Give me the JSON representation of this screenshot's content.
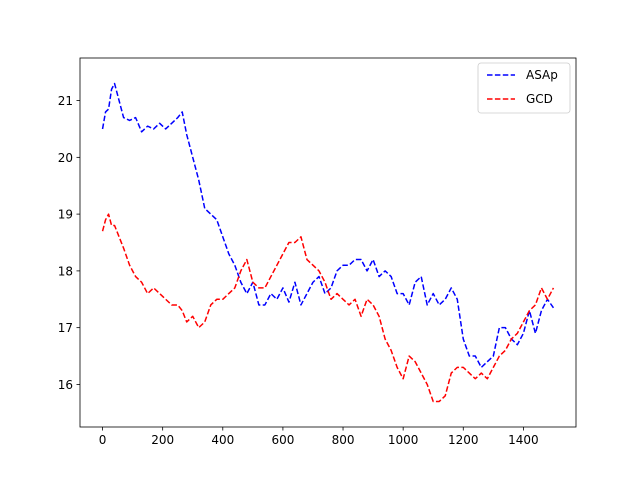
{
  "chart_data": {
    "type": "line",
    "title": "",
    "xlabel": "",
    "ylabel": "",
    "xlim": [
      -75,
      1575
    ],
    "ylim": [
      15.25,
      21.75
    ],
    "xticks": [
      0,
      200,
      400,
      600,
      800,
      1000,
      1200,
      1400
    ],
    "yticks": [
      16,
      17,
      18,
      19,
      20,
      21
    ],
    "grid": false,
    "legend_position": "top-right",
    "series": [
      {
        "name": "ASAp",
        "color": "#0000ff",
        "linestyle": "dashed",
        "x": [
          0,
          10,
          20,
          30,
          40,
          55,
          70,
          90,
          110,
          130,
          150,
          170,
          190,
          210,
          230,
          250,
          265,
          280,
          300,
          320,
          340,
          360,
          380,
          400,
          420,
          440,
          460,
          480,
          500,
          520,
          540,
          560,
          580,
          600,
          620,
          640,
          660,
          680,
          700,
          720,
          740,
          760,
          780,
          800,
          820,
          840,
          860,
          880,
          900,
          920,
          940,
          960,
          980,
          1000,
          1020,
          1040,
          1060,
          1080,
          1100,
          1120,
          1140,
          1160,
          1180,
          1200,
          1220,
          1240,
          1260,
          1280,
          1300,
          1320,
          1340,
          1360,
          1380,
          1400,
          1420,
          1440,
          1460,
          1480,
          1500
        ],
        "y": [
          20.5,
          20.8,
          20.85,
          21.2,
          21.3,
          21.0,
          20.7,
          20.65,
          20.7,
          20.45,
          20.55,
          20.5,
          20.6,
          20.5,
          20.6,
          20.7,
          20.8,
          20.4,
          20.0,
          19.6,
          19.1,
          19.0,
          18.9,
          18.6,
          18.3,
          18.1,
          17.8,
          17.6,
          17.8,
          17.4,
          17.4,
          17.6,
          17.5,
          17.7,
          17.45,
          17.8,
          17.4,
          17.6,
          17.8,
          17.9,
          17.6,
          17.7,
          18.0,
          18.1,
          18.1,
          18.2,
          18.2,
          18.0,
          18.2,
          17.9,
          18.0,
          17.9,
          17.6,
          17.6,
          17.4,
          17.8,
          17.9,
          17.4,
          17.6,
          17.4,
          17.5,
          17.7,
          17.5,
          16.8,
          16.5,
          16.5,
          16.3,
          16.4,
          16.5,
          17.0,
          17.0,
          16.8,
          16.7,
          16.9,
          17.3,
          16.9,
          17.3,
          17.5,
          17.35
        ]
      },
      {
        "name": "GCD",
        "color": "#ff0000",
        "linestyle": "dashed",
        "x": [
          0,
          10,
          20,
          30,
          40,
          55,
          70,
          90,
          110,
          130,
          150,
          170,
          190,
          210,
          230,
          250,
          265,
          280,
          300,
          320,
          340,
          360,
          380,
          400,
          420,
          440,
          460,
          480,
          500,
          520,
          540,
          560,
          580,
          600,
          620,
          640,
          660,
          680,
          700,
          720,
          740,
          760,
          780,
          800,
          820,
          840,
          860,
          880,
          900,
          920,
          940,
          960,
          980,
          1000,
          1020,
          1040,
          1060,
          1080,
          1100,
          1120,
          1140,
          1160,
          1180,
          1200,
          1220,
          1240,
          1260,
          1280,
          1300,
          1320,
          1340,
          1360,
          1380,
          1400,
          1420,
          1440,
          1460,
          1480,
          1500
        ],
        "y": [
          18.7,
          18.9,
          19.0,
          18.8,
          18.8,
          18.6,
          18.4,
          18.1,
          17.9,
          17.8,
          17.6,
          17.7,
          17.6,
          17.5,
          17.4,
          17.4,
          17.3,
          17.1,
          17.2,
          17.0,
          17.1,
          17.4,
          17.5,
          17.5,
          17.6,
          17.7,
          18.0,
          18.2,
          17.8,
          17.7,
          17.7,
          17.9,
          18.1,
          18.3,
          18.5,
          18.5,
          18.6,
          18.2,
          18.1,
          18.0,
          17.8,
          17.5,
          17.6,
          17.5,
          17.4,
          17.5,
          17.2,
          17.5,
          17.4,
          17.2,
          16.8,
          16.6,
          16.3,
          16.1,
          16.5,
          16.4,
          16.2,
          16.0,
          15.7,
          15.7,
          15.8,
          16.2,
          16.3,
          16.3,
          16.2,
          16.1,
          16.2,
          16.1,
          16.3,
          16.5,
          16.6,
          16.8,
          16.9,
          17.1,
          17.3,
          17.4,
          17.7,
          17.5,
          17.7
        ]
      }
    ]
  }
}
